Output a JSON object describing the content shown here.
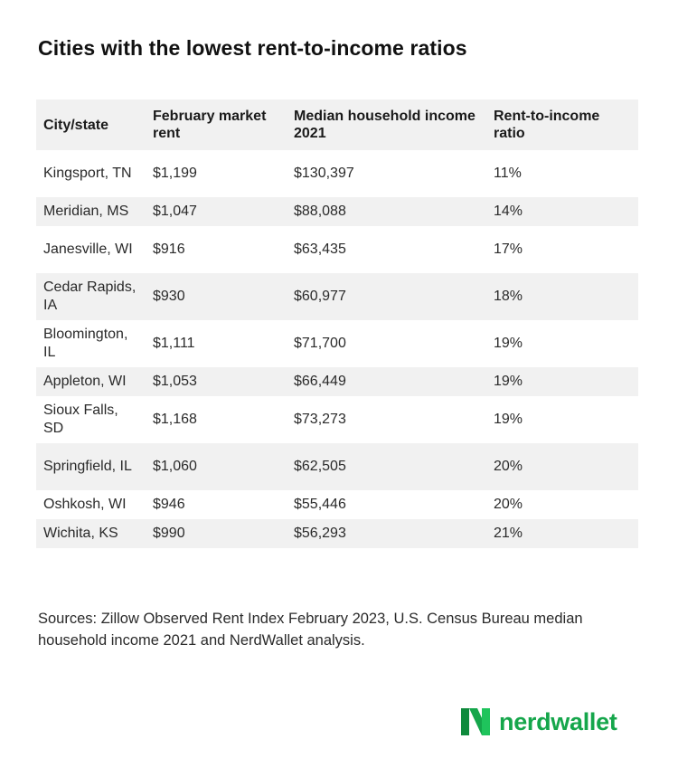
{
  "title": "Cities with the lowest rent-to-income ratios",
  "table": {
    "headers": [
      "City/state",
      "February market rent",
      "Median household income 2021",
      "Rent-to-income ratio"
    ],
    "rows": [
      {
        "city": "Kingsport, TN",
        "rent": "$1,199",
        "income": "$130,397",
        "ratio": "11%"
      },
      {
        "city": "Meridian, MS",
        "rent": "$1,047",
        "income": "$88,088",
        "ratio": "14%"
      },
      {
        "city": "Janesville, WI",
        "rent": "$916",
        "income": "$63,435",
        "ratio": "17%"
      },
      {
        "city": "Cedar Rapids, IA",
        "rent": "$930",
        "income": "$60,977",
        "ratio": "18%"
      },
      {
        "city": "Bloomington, IL",
        "rent": "$1,111",
        "income": "$71,700",
        "ratio": "19%"
      },
      {
        "city": "Appleton, WI",
        "rent": "$1,053",
        "income": "$66,449",
        "ratio": "19%"
      },
      {
        "city": "Sioux Falls, SD",
        "rent": "$1,168",
        "income": "$73,273",
        "ratio": "19%"
      },
      {
        "city": "Springfield, IL",
        "rent": "$1,060",
        "income": "$62,505",
        "ratio": "20%"
      },
      {
        "city": "Oshkosh, WI",
        "rent": "$946",
        "income": "$55,446",
        "ratio": "20%"
      },
      {
        "city": "Wichita, KS",
        "rent": "$990",
        "income": "$56,293",
        "ratio": "21%"
      }
    ]
  },
  "sources": "Sources: Zillow Observed Rent Index February 2023, U.S. Census Bureau median household income 2021 and NerdWallet analysis.",
  "logo": {
    "text": "nerdwallet",
    "icon": "nerdwallet-n-logo-icon",
    "color": "#15a64b"
  }
}
